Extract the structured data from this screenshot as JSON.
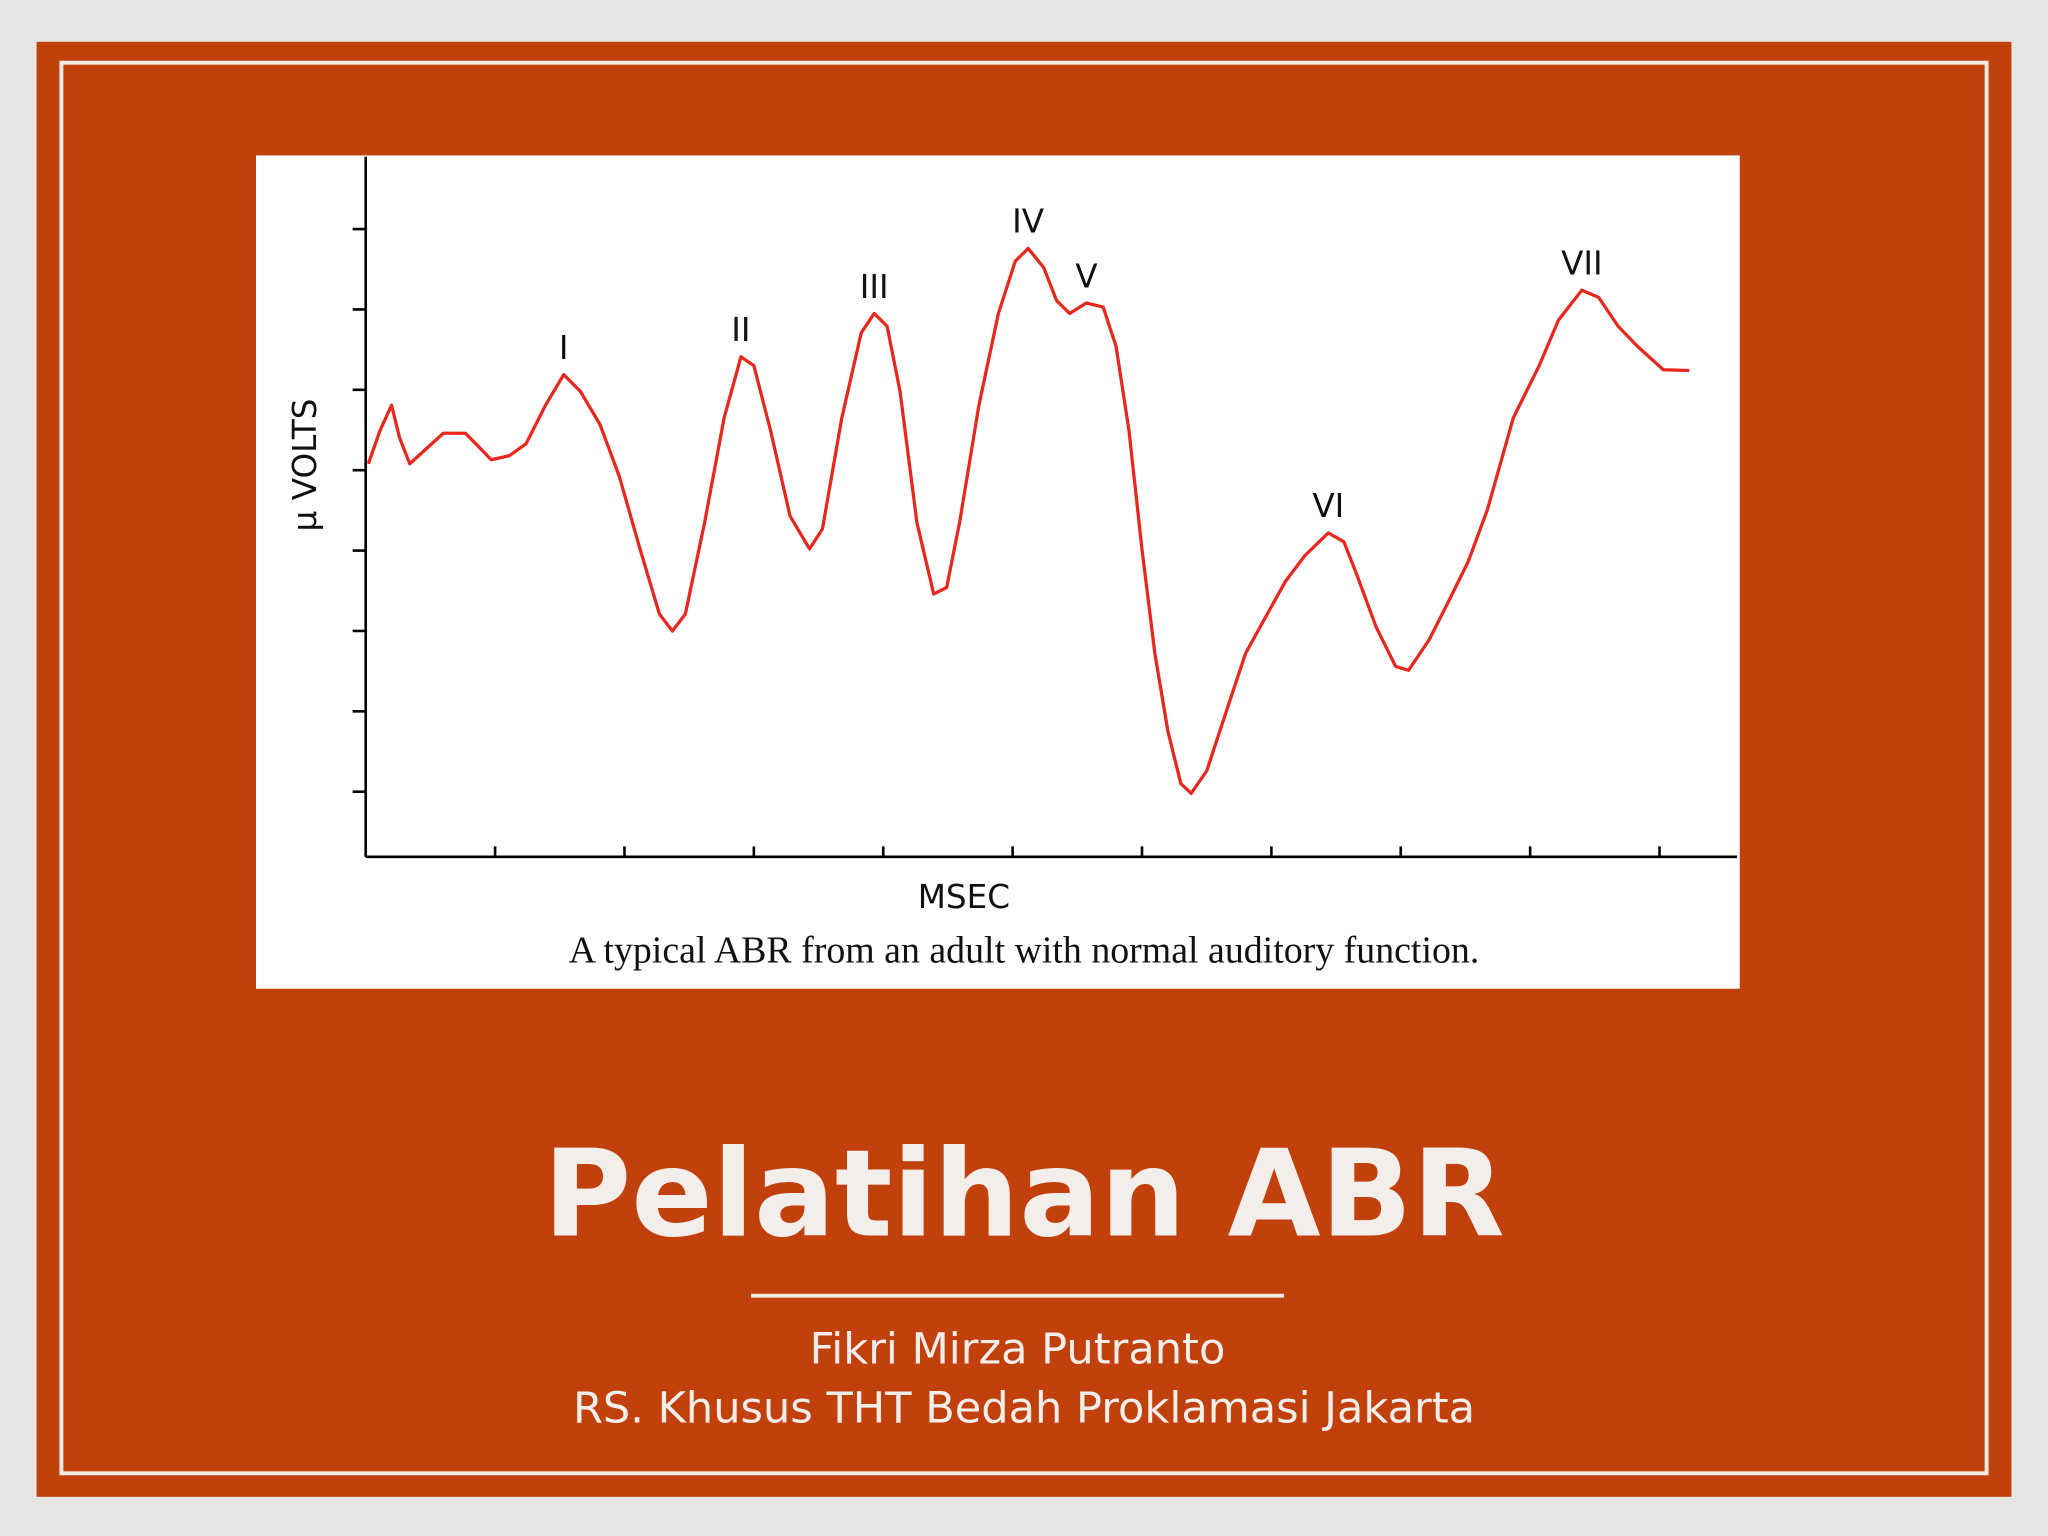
{
  "slide": {
    "title": "Pelatihan ABR",
    "author": "Fikri Mirza Putranto",
    "affiliation": "RS. Khusus THT Bedah Proklamasi Jakarta"
  },
  "figure": {
    "caption": "A typical ABR from an adult with normal auditory function.",
    "chart_data": {
      "type": "line",
      "x_label": "MSEC",
      "y_label": "μ VOLTS",
      "x": [
        0.02,
        0.11,
        0.2,
        0.26,
        0.34,
        0.45,
        0.6,
        0.77,
        0.85,
        0.97,
        1.11,
        1.24,
        1.39,
        1.53,
        1.66,
        1.81,
        1.96,
        2.12,
        2.27,
        2.37,
        2.47,
        2.62,
        2.77,
        2.9,
        3.0,
        3.13,
        3.28,
        3.43,
        3.53,
        3.68,
        3.83,
        3.93,
        4.03,
        4.13,
        4.26,
        4.39,
        4.49,
        4.59,
        4.74,
        4.89,
        5.02,
        5.12,
        5.24,
        5.34,
        5.44,
        5.57,
        5.7,
        5.8,
        5.9,
        6.0,
        6.1,
        6.2,
        6.3,
        6.38,
        6.5,
        6.65,
        6.8,
        6.94,
        7.11,
        7.26,
        7.44,
        7.56,
        7.66,
        7.81,
        7.96,
        8.06,
        8.22,
        8.37,
        8.52,
        8.67,
        8.87,
        9.07,
        9.22,
        9.4,
        9.53,
        9.68,
        9.83,
        10.03,
        10.23
      ],
      "series": [
        {
          "color": "#e8281e",
          "values": [
            4.08,
            4.49,
            4.81,
            4.41,
            4.08,
            4.24,
            4.46,
            4.46,
            4.33,
            4.13,
            4.18,
            4.33,
            4.81,
            5.19,
            4.98,
            4.57,
            3.92,
            3.02,
            2.21,
            2.0,
            2.21,
            3.35,
            4.65,
            5.41,
            5.3,
            4.49,
            3.43,
            3.02,
            3.27,
            4.65,
            5.71,
            5.95,
            5.79,
            4.98,
            3.35,
            2.46,
            2.54,
            3.35,
            4.81,
            5.95,
            6.6,
            6.76,
            6.52,
            6.11,
            5.95,
            6.08,
            6.03,
            5.54,
            4.49,
            3.02,
            1.72,
            0.75,
            0.1,
            -0.02,
            0.26,
            0.99,
            1.72,
            2.13,
            2.62,
            2.94,
            3.22,
            3.11,
            2.7,
            2.05,
            1.56,
            1.51,
            1.89,
            2.37,
            2.86,
            3.51,
            4.65,
            5.3,
            5.87,
            6.24,
            6.15,
            5.79,
            5.54,
            5.25,
            5.24
          ]
        }
      ],
      "xlim": [
        0,
        10.6
      ],
      "ylim": [
        -0.81,
        7.9
      ],
      "xticks": [
        1,
        2,
        3,
        4,
        5,
        6,
        7,
        8,
        9,
        10
      ],
      "yticks": [
        0,
        1,
        2,
        3,
        4,
        5,
        6,
        7
      ],
      "annotations": [
        {
          "text": "I",
          "x": 1.53
        },
        {
          "text": "II",
          "x": 2.9
        },
        {
          "text": "III",
          "x": 3.93
        },
        {
          "text": "IV",
          "x": 5.12
        },
        {
          "text": "V",
          "x": 5.57
        },
        {
          "text": "VI",
          "x": 7.44
        },
        {
          "text": "VII",
          "x": 9.4
        }
      ]
    }
  }
}
